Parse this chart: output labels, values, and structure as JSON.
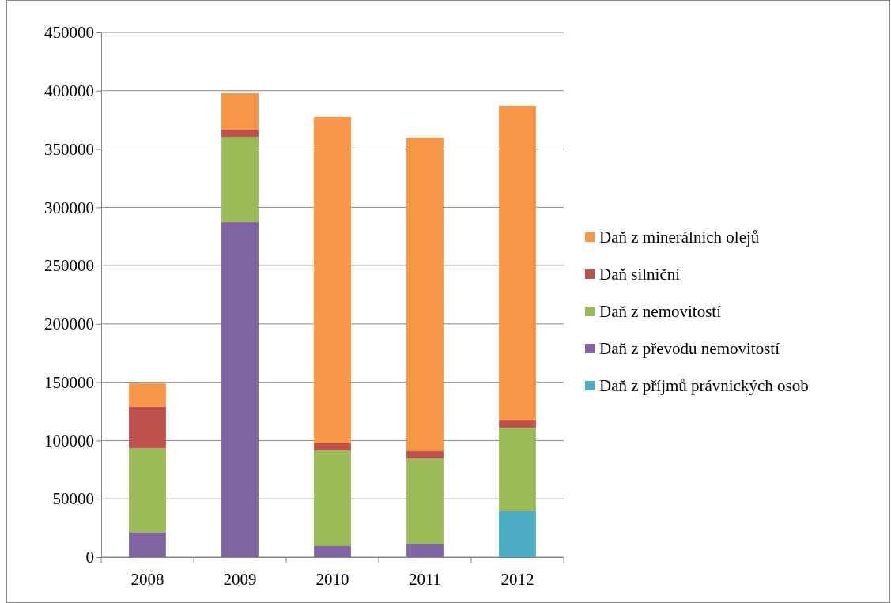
{
  "chart_data": {
    "type": "bar",
    "stacked": true,
    "categories": [
      "2008",
      "2009",
      "2010",
      "2011",
      "2012"
    ],
    "series": [
      {
        "name": "Daň z příjmů právnických osob",
        "color": "#4bacc6",
        "values": [
          0,
          0,
          0,
          0,
          39300
        ]
      },
      {
        "name": "Daň z převodu nemovitostí",
        "color": "#8064a2",
        "values": [
          21000,
          287300,
          9500,
          11500,
          0
        ]
      },
      {
        "name": "Daň z nemovitostí",
        "color": "#9bbb59",
        "values": [
          72500,
          73200,
          82000,
          73200,
          71800
        ]
      },
      {
        "name": "Daň silniční",
        "color": "#c0504d",
        "values": [
          35300,
          6100,
          6100,
          6100,
          6100
        ]
      },
      {
        "name": "Daň z minerálních olejů",
        "color": "#f79646",
        "values": [
          20200,
          31200,
          279900,
          269100,
          269800
        ]
      }
    ],
    "ylim": [
      0,
      450000
    ],
    "yticks": [
      0,
      50000,
      100000,
      150000,
      200000,
      250000,
      300000,
      350000,
      400000,
      450000
    ],
    "grid": "y",
    "legend": "right"
  }
}
